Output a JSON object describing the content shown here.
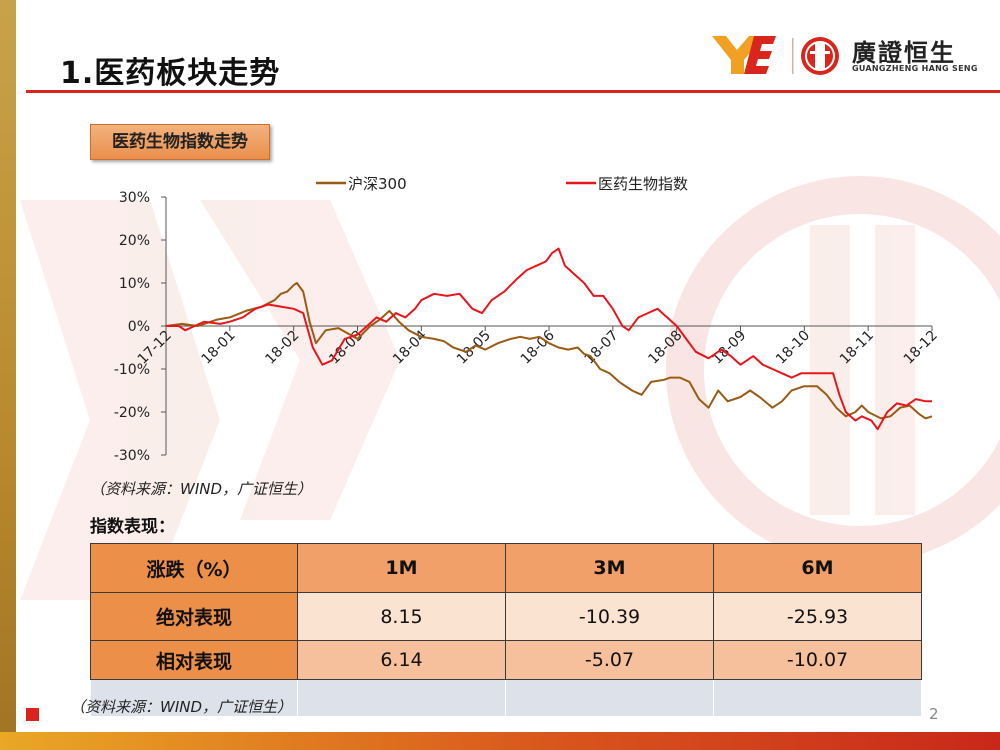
{
  "header": {
    "title": "1.医药板块走势",
    "logo_name": "廣證恒生",
    "logo_sub": "GUANGZHENG HANG SENG"
  },
  "chart_tag": "医药生物指数走势",
  "chart_source": "（资料来源：WIND，广证恒生）",
  "chart_data": {
    "type": "line",
    "x_labels": [
      "17-12",
      "18-01",
      "18-02",
      "18-03",
      "18-04",
      "18-05",
      "18-06",
      "18-07",
      "18-08",
      "18-09",
      "18-10",
      "18-11",
      "18-12"
    ],
    "y_ticks": [
      "30%",
      "20%",
      "10%",
      "0%",
      "-10%",
      "-20%",
      "-30%"
    ],
    "ylim": [
      -30,
      30
    ],
    "legend_placement": "top",
    "grid": false,
    "series": [
      {
        "name": "沪深300",
        "color": "#9a5c14",
        "points": [
          [
            0,
            0
          ],
          [
            0.25,
            0.5
          ],
          [
            0.5,
            0
          ],
          [
            0.8,
            1.5
          ],
          [
            1.0,
            2
          ],
          [
            1.25,
            3.5
          ],
          [
            1.5,
            4.5
          ],
          [
            1.7,
            6
          ],
          [
            1.8,
            7.5
          ],
          [
            1.9,
            8
          ],
          [
            2.0,
            9.5
          ],
          [
            2.05,
            10
          ],
          [
            2.15,
            8
          ],
          [
            2.25,
            1
          ],
          [
            2.35,
            -4
          ],
          [
            2.5,
            -1
          ],
          [
            2.7,
            -0.5
          ],
          [
            3.0,
            -3
          ],
          [
            3.2,
            0
          ],
          [
            3.35,
            1.5
          ],
          [
            3.5,
            3.5
          ],
          [
            3.65,
            1
          ],
          [
            3.8,
            -1
          ],
          [
            4.0,
            -2.5
          ],
          [
            4.2,
            -3
          ],
          [
            4.35,
            -3.5
          ],
          [
            4.5,
            -5
          ],
          [
            4.7,
            -6
          ],
          [
            4.85,
            -4.5
          ],
          [
            5.0,
            -5.5
          ],
          [
            5.2,
            -4
          ],
          [
            5.4,
            -3
          ],
          [
            5.55,
            -2.5
          ],
          [
            5.7,
            -3
          ],
          [
            5.85,
            -2.5
          ],
          [
            6.0,
            -4
          ],
          [
            6.15,
            -5
          ],
          [
            6.3,
            -5.5
          ],
          [
            6.45,
            -5
          ],
          [
            6.55,
            -6.5
          ],
          [
            6.65,
            -7
          ],
          [
            6.8,
            -10
          ],
          [
            6.95,
            -11
          ],
          [
            7.1,
            -13
          ],
          [
            7.3,
            -15
          ],
          [
            7.45,
            -16
          ],
          [
            7.6,
            -13
          ],
          [
            7.8,
            -12.5
          ],
          [
            7.9,
            -12
          ],
          [
            8.05,
            -12
          ],
          [
            8.2,
            -13
          ],
          [
            8.35,
            -17
          ],
          [
            8.5,
            -19
          ],
          [
            8.65,
            -15
          ],
          [
            8.8,
            -17.5
          ],
          [
            9.0,
            -16.5
          ],
          [
            9.15,
            -15
          ],
          [
            9.3,
            -16.5
          ],
          [
            9.5,
            -19
          ],
          [
            9.65,
            -17.5
          ],
          [
            9.8,
            -15
          ],
          [
            10.0,
            -14
          ],
          [
            10.2,
            -14
          ],
          [
            10.35,
            -16
          ],
          [
            10.5,
            -19
          ],
          [
            10.65,
            -21
          ],
          [
            10.8,
            -20
          ],
          [
            10.9,
            -18.5
          ],
          [
            11.0,
            -20
          ],
          [
            11.2,
            -21.5
          ],
          [
            11.35,
            -21
          ],
          [
            11.5,
            -19
          ],
          [
            11.65,
            -18.5
          ],
          [
            11.8,
            -20.5
          ],
          [
            11.9,
            -21.5
          ],
          [
            12.0,
            -21
          ]
        ]
      },
      {
        "name": "医药生物指数",
        "color": "#e8161c",
        "points": [
          [
            0,
            0
          ],
          [
            0.2,
            0
          ],
          [
            0.3,
            -1
          ],
          [
            0.45,
            0
          ],
          [
            0.6,
            1
          ],
          [
            0.85,
            0.5
          ],
          [
            1.0,
            1
          ],
          [
            1.2,
            2
          ],
          [
            1.4,
            4
          ],
          [
            1.6,
            5
          ],
          [
            1.8,
            4.5
          ],
          [
            2.0,
            4
          ],
          [
            2.15,
            3
          ],
          [
            2.3,
            -5
          ],
          [
            2.45,
            -9
          ],
          [
            2.6,
            -8
          ],
          [
            2.8,
            -3
          ],
          [
            3.0,
            -2
          ],
          [
            3.15,
            0
          ],
          [
            3.3,
            2
          ],
          [
            3.45,
            1
          ],
          [
            3.6,
            3
          ],
          [
            3.75,
            2
          ],
          [
            3.9,
            4
          ],
          [
            4.0,
            6
          ],
          [
            4.2,
            7.5
          ],
          [
            4.4,
            7
          ],
          [
            4.6,
            7.5
          ],
          [
            4.8,
            4
          ],
          [
            4.95,
            3
          ],
          [
            5.1,
            6
          ],
          [
            5.3,
            8
          ],
          [
            5.5,
            11
          ],
          [
            5.65,
            13
          ],
          [
            5.8,
            14
          ],
          [
            5.95,
            15
          ],
          [
            6.05,
            17
          ],
          [
            6.15,
            18
          ],
          [
            6.25,
            14
          ],
          [
            6.4,
            12
          ],
          [
            6.55,
            10
          ],
          [
            6.7,
            7
          ],
          [
            6.85,
            7
          ],
          [
            7.0,
            4
          ],
          [
            7.15,
            0
          ],
          [
            7.25,
            -1
          ],
          [
            7.4,
            2
          ],
          [
            7.55,
            3
          ],
          [
            7.7,
            4
          ],
          [
            7.85,
            2
          ],
          [
            8.0,
            0
          ],
          [
            8.15,
            -3
          ],
          [
            8.3,
            -6
          ],
          [
            8.5,
            -7.5
          ],
          [
            8.7,
            -5.5
          ],
          [
            8.85,
            -7
          ],
          [
            9.0,
            -9
          ],
          [
            9.2,
            -7
          ],
          [
            9.35,
            -9
          ],
          [
            9.5,
            -10
          ],
          [
            9.65,
            -11
          ],
          [
            9.8,
            -12
          ],
          [
            9.95,
            -11
          ],
          [
            10.1,
            -11
          ],
          [
            10.3,
            -11
          ],
          [
            10.45,
            -11
          ],
          [
            10.55,
            -16
          ],
          [
            10.65,
            -20
          ],
          [
            10.8,
            -22
          ],
          [
            10.9,
            -21
          ],
          [
            11.05,
            -22
          ],
          [
            11.15,
            -24
          ],
          [
            11.3,
            -20
          ],
          [
            11.45,
            -18
          ],
          [
            11.6,
            -18.5
          ],
          [
            11.75,
            -17
          ],
          [
            11.9,
            -17.5
          ],
          [
            12.0,
            -17.5
          ]
        ]
      }
    ]
  },
  "performance": {
    "title": "指数表现：",
    "header": [
      "涨跌（%）",
      "1M",
      "3M",
      "6M"
    ],
    "rows": [
      {
        "label": "绝对表现",
        "values": [
          "8.15",
          "-10.39",
          "-25.93"
        ]
      },
      {
        "label": "相对表现",
        "values": [
          "6.14",
          "-5.07",
          "-10.07"
        ]
      }
    ],
    "source": "（资料来源：WIND，广证恒生）"
  },
  "page_number": "2",
  "colors": {
    "accent_red": "#d9261c",
    "header_orange": "#ec8f48"
  }
}
